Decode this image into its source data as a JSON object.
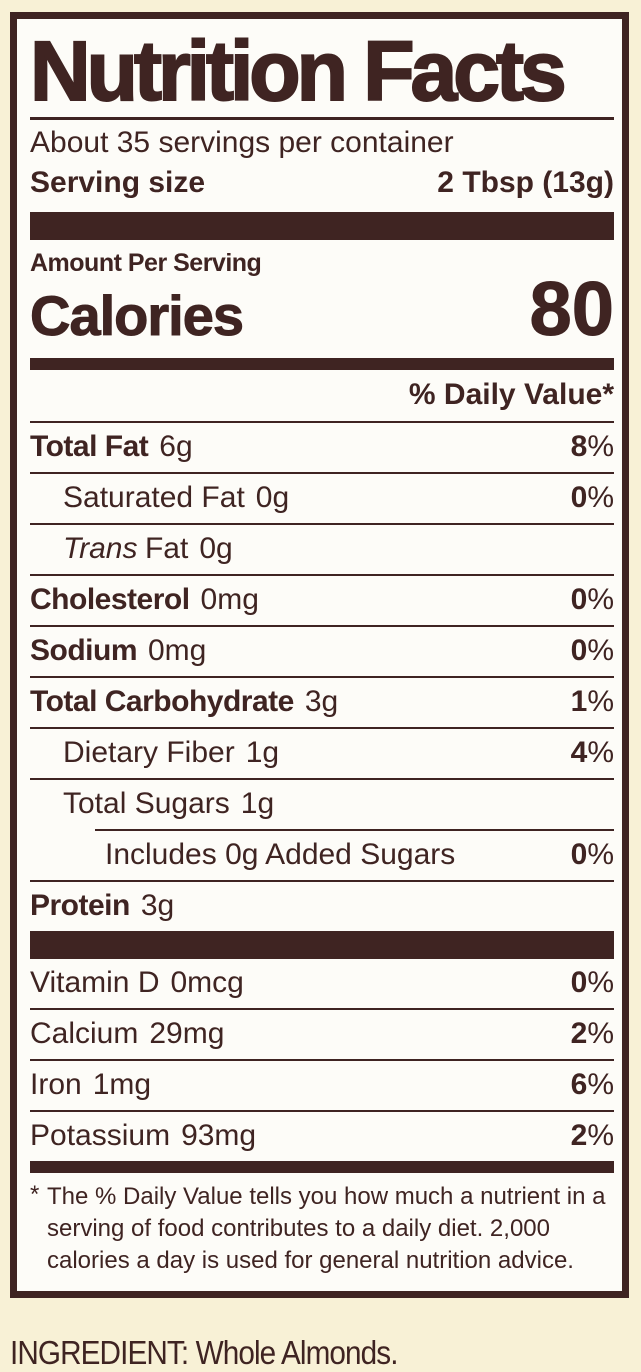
{
  "colors": {
    "ink": "#3f2422",
    "background": "#f8f1d6",
    "panel_background": "#fdfcf8"
  },
  "panel": {
    "title": "Nutrition Facts",
    "servings_per_container": "About 35 servings per container",
    "serving_size_label": "Serving size",
    "serving_size_value": "2 Tbsp (13g)",
    "amount_per_serving_label": "Amount Per Serving",
    "calories_label": "Calories",
    "calories_value": "80",
    "daily_value_header": "% Daily Value*",
    "percent_sign": "%",
    "rows": [
      {
        "name": "Total Fat",
        "amount": "6g",
        "dv": "8"
      },
      {
        "name": "Saturated Fat",
        "amount": "0g",
        "dv": "0"
      },
      {
        "name_italic": "Trans",
        "name_rest": "Fat",
        "amount": "0g",
        "dv": ""
      },
      {
        "name": "Cholesterol",
        "amount": "0mg",
        "dv": "0"
      },
      {
        "name": "Sodium",
        "amount": "0mg",
        "dv": "0"
      },
      {
        "name": "Total Carbohydrate",
        "amount": "3g",
        "dv": "1"
      },
      {
        "name": "Dietary Fiber",
        "amount": "1g",
        "dv": "4"
      },
      {
        "name": "Total Sugars",
        "amount": "1g",
        "dv": ""
      },
      {
        "name": "Includes 0g Added Sugars",
        "amount": "",
        "dv": "0"
      },
      {
        "name": "Protein",
        "amount": "3g",
        "dv": ""
      }
    ],
    "vitamins": [
      {
        "name": "Vitamin D",
        "amount": "0mcg",
        "dv": "0"
      },
      {
        "name": "Calcium",
        "amount": "29mg",
        "dv": "2"
      },
      {
        "name": "Iron",
        "amount": "1mg",
        "dv": "6"
      },
      {
        "name": "Potassium",
        "amount": "93mg",
        "dv": "2"
      }
    ],
    "footnote_marker": "*",
    "footnote_text": "The % Daily Value tells you how much a nutrient in a serving of food contributes to a daily diet. 2,000 calories a day is used for general nutrition advice."
  },
  "ingredient_line": "INGREDIENT: Whole Almonds."
}
